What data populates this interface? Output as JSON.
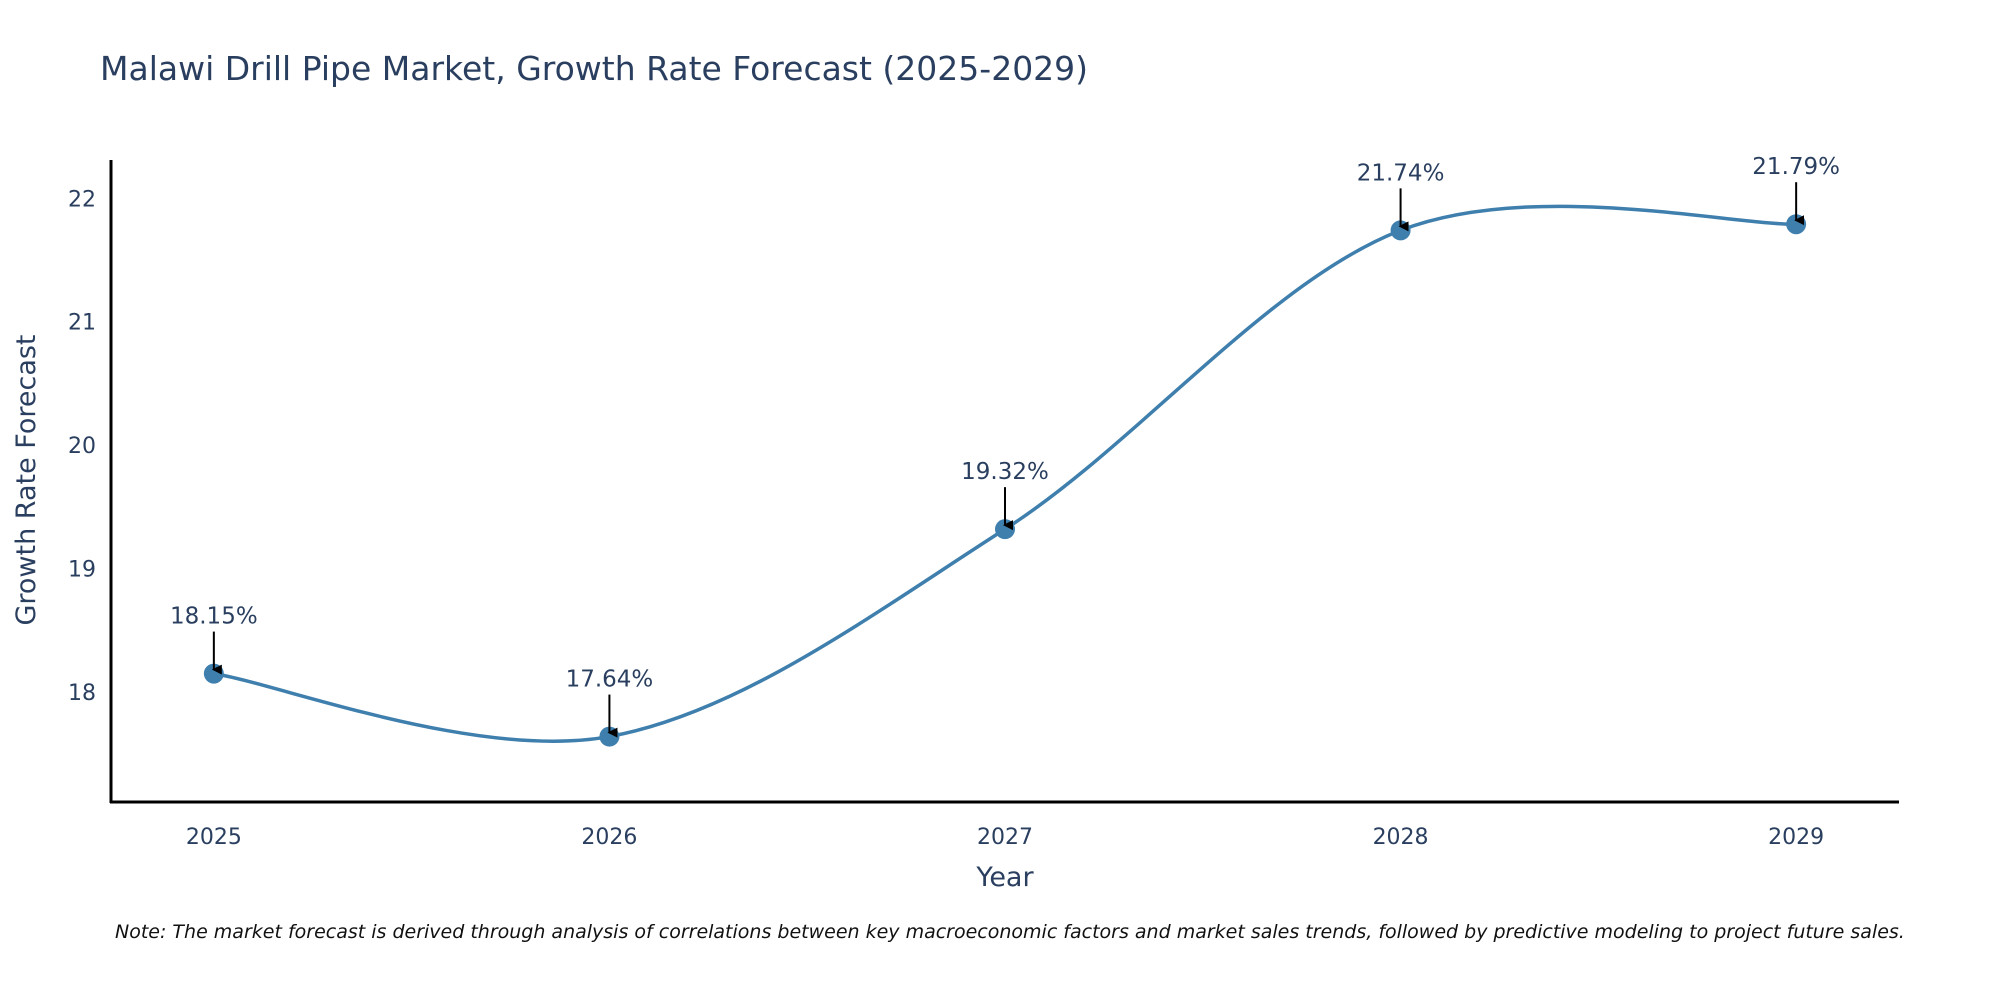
{
  "chart_data": {
    "type": "line",
    "title": "Malawi Drill Pipe Market, Growth Rate Forecast (2025-2029)",
    "xlabel": "Year",
    "ylabel": "Growth Rate Forecast",
    "x": [
      2025,
      2026,
      2027,
      2028,
      2029
    ],
    "series": [
      {
        "name": "Growth Rate Forecast",
        "values": [
          18.15,
          17.64,
          19.32,
          21.74,
          21.79
        ],
        "labels": [
          "18.15%",
          "17.64%",
          "19.32%",
          "21.74%",
          "21.79%"
        ],
        "color": "#3f7fad",
        "line_shape": "spline",
        "markers": true
      }
    ],
    "xticks": [
      "2025",
      "2026",
      "2027",
      "2028",
      "2029"
    ],
    "yticks": [
      "18",
      "19",
      "20",
      "21",
      "22"
    ],
    "ytick_values": [
      18,
      19,
      20,
      21,
      22
    ],
    "xlim": [
      2024.74,
      2029.26
    ],
    "ylim": [
      17.11,
      22.31
    ],
    "grid": false,
    "legend": "none",
    "annotations": "arrow labels above each point",
    "note": "Note: The market forecast is derived through analysis of correlations between key macroeconomic factors and market sales trends, followed by predictive modeling to project future sales."
  }
}
